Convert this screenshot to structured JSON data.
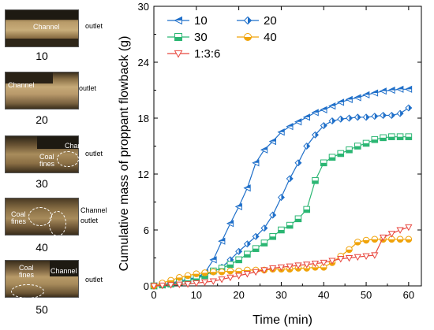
{
  "panels": [
    {
      "number": "10",
      "labels": [
        "Channel"
      ],
      "outlet": "outlet"
    },
    {
      "number": "20",
      "labels": [
        "Channel"
      ],
      "outlet": "outlet"
    },
    {
      "number": "30",
      "labels": [
        "Channel",
        "Coal\nfines"
      ],
      "outlet": "outlet"
    },
    {
      "number": "40",
      "labels": [
        "Coal\nfines"
      ],
      "outlet": "Channel\noutlet"
    },
    {
      "number": "50",
      "labels": [
        "Coal\nfines",
        "Channel"
      ],
      "outlet": "outlet"
    }
  ],
  "chart_data": {
    "type": "line",
    "title": "",
    "xlabel": "Time (min)",
    "ylabel": "Cumulative mass of proppant flowback (g)",
    "xlim": [
      0,
      63
    ],
    "ylim": [
      0,
      30
    ],
    "xticks": [
      0,
      10,
      20,
      30,
      40,
      50,
      60
    ],
    "yticks": [
      0,
      6,
      12,
      18,
      24,
      30
    ],
    "legend_position": "top-left",
    "series": [
      {
        "name": "10",
        "color": "#1f6fc9",
        "marker": "left-half-triangle",
        "x": [
          0,
          2,
          4,
          6,
          8,
          10,
          12,
          14,
          16,
          18,
          20,
          22,
          24,
          26,
          28,
          30,
          32,
          34,
          36,
          38,
          40,
          42,
          44,
          46,
          48,
          50,
          52,
          54,
          56,
          58,
          60
        ],
        "y": [
          0,
          0.1,
          0.3,
          0.5,
          0.7,
          0.9,
          1.4,
          2.8,
          4.8,
          6.7,
          8.5,
          10.5,
          13.2,
          14.6,
          15.5,
          16.5,
          17.1,
          17.6,
          18.1,
          18.6,
          18.9,
          19.3,
          19.7,
          20.0,
          20.2,
          20.5,
          20.7,
          20.9,
          21.0,
          21.1,
          21.1
        ]
      },
      {
        "name": "20",
        "color": "#1f6fc9",
        "marker": "right-half-diamond",
        "x": [
          0,
          2,
          4,
          6,
          8,
          10,
          12,
          14,
          16,
          18,
          20,
          22,
          24,
          26,
          28,
          30,
          32,
          34,
          36,
          38,
          40,
          42,
          44,
          46,
          48,
          50,
          52,
          54,
          56,
          58,
          60
        ],
        "y": [
          0,
          0.1,
          0.2,
          0.4,
          0.6,
          0.9,
          1.2,
          1.5,
          2.0,
          2.8,
          3.7,
          4.5,
          5.3,
          6.2,
          7.6,
          9.5,
          11.5,
          13.2,
          15.0,
          16.2,
          17.2,
          17.7,
          17.9,
          18.0,
          18.1,
          18.1,
          18.2,
          18.3,
          18.3,
          18.5,
          19.1
        ]
      },
      {
        "name": "30",
        "color": "#2bb673",
        "marker": "half-square",
        "x": [
          0,
          2,
          4,
          6,
          8,
          10,
          12,
          14,
          16,
          18,
          20,
          22,
          24,
          26,
          28,
          30,
          32,
          34,
          36,
          38,
          40,
          42,
          44,
          46,
          48,
          50,
          52,
          54,
          56,
          58,
          60
        ],
        "y": [
          0,
          0.1,
          0.2,
          0.4,
          0.6,
          0.8,
          1.1,
          1.6,
          1.9,
          2.3,
          2.8,
          3.4,
          4.0,
          4.6,
          5.3,
          6.0,
          6.5,
          7.2,
          8.2,
          11.3,
          13.2,
          13.8,
          14.2,
          14.6,
          15.0,
          15.3,
          15.7,
          15.9,
          16.0,
          16.0,
          16.0
        ]
      },
      {
        "name": "40",
        "color": "#f0a30a",
        "marker": "half-circle",
        "x": [
          0,
          2,
          4,
          6,
          8,
          10,
          12,
          14,
          16,
          18,
          20,
          22,
          24,
          26,
          28,
          30,
          32,
          34,
          36,
          38,
          40,
          42,
          44,
          46,
          48,
          50,
          52,
          54,
          56,
          58,
          60
        ],
        "y": [
          0,
          0.3,
          0.6,
          0.9,
          1.1,
          1.3,
          1.4,
          1.5,
          1.5,
          1.6,
          1.6,
          1.7,
          1.7,
          1.7,
          1.8,
          1.8,
          1.8,
          1.9,
          1.9,
          2.0,
          2.0,
          2.5,
          3.2,
          3.9,
          4.7,
          4.9,
          5.0,
          5.0,
          5.0,
          5.0,
          5.0
        ]
      },
      {
        "name": "1:3:6",
        "color": "#e8473f",
        "marker": "triangle-down",
        "x": [
          0,
          2,
          4,
          6,
          8,
          10,
          12,
          14,
          16,
          18,
          20,
          22,
          24,
          26,
          28,
          30,
          32,
          34,
          36,
          38,
          40,
          42,
          44,
          46,
          48,
          50,
          52,
          54,
          56,
          58,
          60
        ],
        "y": [
          0,
          0.05,
          0.1,
          0.15,
          0.2,
          0.3,
          0.4,
          0.5,
          0.7,
          0.9,
          1.1,
          1.3,
          1.5,
          1.7,
          1.9,
          2.0,
          2.1,
          2.2,
          2.3,
          2.4,
          2.5,
          2.7,
          2.9,
          3.0,
          3.1,
          3.2,
          3.3,
          5.2,
          5.6,
          6.0,
          6.3
        ]
      }
    ]
  }
}
